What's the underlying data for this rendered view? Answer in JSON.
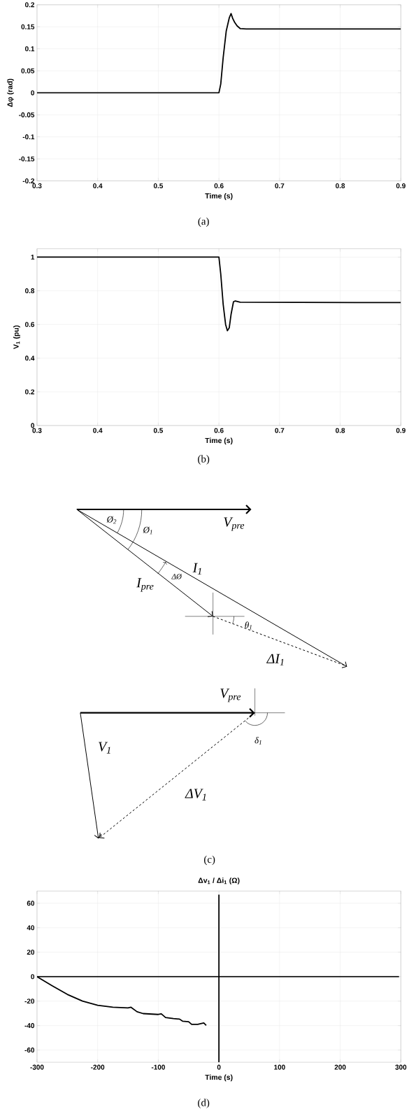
{
  "chart_data": [
    {
      "type": "line",
      "xlabel": "Time (s)",
      "ylabel": "Δφ (rad)",
      "annotations": [
        "(a)"
      ],
      "xlim": [
        0.3,
        0.9
      ],
      "ylim": [
        -0.2,
        0.2
      ],
      "xticks": [
        0.3,
        0.4,
        0.5,
        0.6,
        0.7,
        0.8,
        0.9
      ],
      "yticks": [
        -0.2,
        -0.15,
        -0.1,
        -0.05,
        0,
        0.05,
        0.1,
        0.15,
        0.2
      ],
      "grid": true,
      "series": [
        {
          "color": "#000000",
          "x": [
            0.3,
            0.6,
            0.603,
            0.607,
            0.612,
            0.617,
            0.62,
            0.623,
            0.626,
            0.63,
            0.635,
            0.645,
            0.9
          ],
          "values": [
            0,
            0,
            0.02,
            0.08,
            0.14,
            0.17,
            0.18,
            0.168,
            0.16,
            0.152,
            0.146,
            0.145,
            0.145
          ]
        }
      ]
    },
    {
      "type": "line",
      "xlabel": "Time (s)",
      "ylabel": "V$_{1}$ (pu)",
      "annotations": [
        "(b)"
      ],
      "xlim": [
        0.3,
        0.9
      ],
      "ylim": [
        0,
        1.05
      ],
      "xticks": [
        0.3,
        0.4,
        0.5,
        0.6,
        0.7,
        0.8,
        0.9
      ],
      "yticks": [
        0,
        0.2,
        0.4,
        0.6,
        0.8,
        1
      ],
      "grid": true,
      "series": [
        {
          "color": "#000000",
          "x": [
            0.3,
            0.6,
            0.603,
            0.607,
            0.611,
            0.614,
            0.617,
            0.62,
            0.624,
            0.627,
            0.635,
            0.9
          ],
          "values": [
            1,
            1,
            0.9,
            0.72,
            0.6,
            0.563,
            0.58,
            0.66,
            0.735,
            0.74,
            0.732,
            0.73
          ]
        }
      ]
    },
    {
      "type": "other",
      "annotations": [
        "V$_{pre}$",
        "Ø$_{2}$",
        "Ø$_{1}$",
        "I$_{1}$",
        "I$_{pre}$",
        "ΔØ",
        "θ$_{1}$",
        "ΔI$_{1}$",
        "V$_{pre}$",
        "V$_{1}$",
        "δ$_{1}$",
        "ΔV$_{1}$",
        "(c)"
      ]
    },
    {
      "type": "line",
      "title": "Δv$_{1}$ / Δi$_{1}$ (Ω)",
      "xlabel": "Time (s)",
      "annotations": [
        "(d)"
      ],
      "xlim": [
        -300,
        300
      ],
      "ylim": [
        -70,
        70
      ],
      "xticks": [
        -300,
        -200,
        -100,
        0,
        100,
        200,
        300
      ],
      "yticks": [
        -60,
        -40,
        -20,
        0,
        20,
        40,
        60
      ],
      "grid": true,
      "series": [
        {
          "color": "#000000",
          "x": [
            0,
            0
          ],
          "values": [
            -70,
            67
          ]
        },
        {
          "color": "#000000",
          "x": [
            -300,
            297
          ],
          "values": [
            0,
            0
          ]
        },
        {
          "color": "#000000",
          "x": [
            -300,
            -275,
            -250,
            -225,
            -200,
            -175,
            -150,
            -145,
            -135,
            -125,
            -100,
            -95,
            -88,
            -75,
            -65,
            -60,
            -50,
            -45,
            -35,
            -25,
            -21
          ],
          "values": [
            0,
            -7.4,
            -14.5,
            -20,
            -23.4,
            -25,
            -25.5,
            -25,
            -28.7,
            -30.2,
            -30.9,
            -30.4,
            -33.4,
            -34.3,
            -34.7,
            -36.4,
            -36.8,
            -39,
            -39,
            -37.9,
            -39.8
          ]
        }
      ]
    }
  ]
}
